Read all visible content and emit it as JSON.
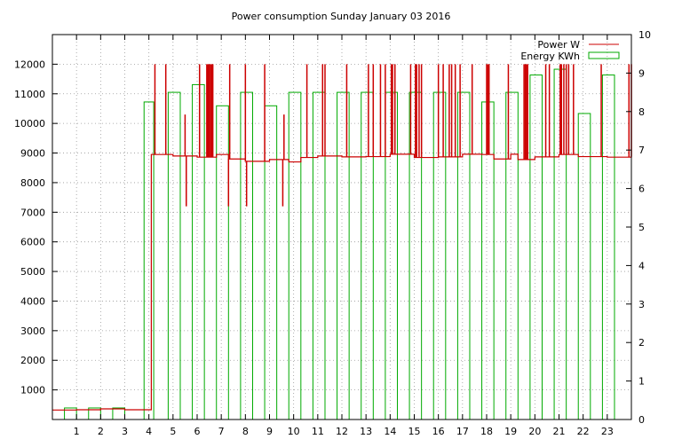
{
  "chart_data": {
    "type": "bar",
    "title": "Power consumption Sunday January 03 2016",
    "xlabel": "",
    "ylabel": "",
    "y2label": "",
    "xlim": [
      0,
      24
    ],
    "ylim": [
      0,
      13000
    ],
    "y2lim": [
      0,
      10
    ],
    "xticks": [
      1,
      2,
      3,
      4,
      5,
      6,
      7,
      8,
      9,
      10,
      11,
      12,
      13,
      14,
      15,
      16,
      17,
      18,
      19,
      20,
      21,
      22,
      23
    ],
    "yticks": [
      1000,
      2000,
      3000,
      4000,
      5000,
      6000,
      7000,
      8000,
      9000,
      10000,
      11000,
      12000
    ],
    "y2ticks": [
      0,
      1,
      2,
      3,
      4,
      5,
      6,
      7,
      8,
      9,
      10
    ],
    "grid": true,
    "legend_position": "top-right",
    "series": [
      {
        "name": "Power W",
        "axis": "y1",
        "style": "line",
        "color": "#cc0000",
        "baseline": [
          [
            0,
            320
          ],
          [
            1,
            330
          ],
          [
            2,
            360
          ],
          [
            3,
            330
          ],
          [
            3.9,
            330
          ],
          [
            4.1,
            8950
          ],
          [
            5,
            8900
          ],
          [
            6,
            8860
          ],
          [
            6.8,
            8950
          ],
          [
            7.3,
            8800
          ],
          [
            8,
            8720
          ],
          [
            9,
            8780
          ],
          [
            9.8,
            8700
          ],
          [
            10.3,
            8850
          ],
          [
            11,
            8900
          ],
          [
            12,
            8870
          ],
          [
            13,
            8880
          ],
          [
            14,
            8960
          ],
          [
            15,
            8850
          ],
          [
            16,
            8870
          ],
          [
            17,
            8960
          ],
          [
            17.8,
            8950
          ],
          [
            18.3,
            8800
          ],
          [
            19,
            8960
          ],
          [
            19.3,
            8780
          ],
          [
            20,
            8870
          ],
          [
            21,
            8950
          ],
          [
            21.8,
            8880
          ],
          [
            23,
            8860
          ],
          [
            24,
            8880
          ]
        ],
        "spikes": [
          [
            4.25,
            12000
          ],
          [
            4.7,
            12000
          ],
          [
            5.5,
            10300
          ],
          [
            5.55,
            7200
          ],
          [
            6.1,
            12000
          ],
          [
            6.4,
            12000
          ],
          [
            6.45,
            12000
          ],
          [
            6.5,
            12000
          ],
          [
            6.55,
            12000
          ],
          [
            6.6,
            12000
          ],
          [
            6.65,
            12000
          ],
          [
            7.3,
            7200
          ],
          [
            7.35,
            12000
          ],
          [
            8,
            12000
          ],
          [
            8.05,
            7200
          ],
          [
            8.8,
            12000
          ],
          [
            9.55,
            7200
          ],
          [
            9.6,
            10300
          ],
          [
            10.55,
            12000
          ],
          [
            11.2,
            12000
          ],
          [
            11.3,
            12000
          ],
          [
            12.2,
            12000
          ],
          [
            13.1,
            12000
          ],
          [
            13.3,
            12000
          ],
          [
            13.6,
            12000
          ],
          [
            13.8,
            12000
          ],
          [
            14.05,
            12000
          ],
          [
            14.1,
            12000
          ],
          [
            14.2,
            12000
          ],
          [
            14.85,
            12000
          ],
          [
            15.05,
            12000
          ],
          [
            15.1,
            12000
          ],
          [
            15.2,
            12000
          ],
          [
            15.3,
            12000
          ],
          [
            16,
            12000
          ],
          [
            16.2,
            12000
          ],
          [
            16.45,
            12000
          ],
          [
            16.55,
            12000
          ],
          [
            16.7,
            12000
          ],
          [
            16.9,
            12000
          ],
          [
            17.4,
            12000
          ],
          [
            18,
            12000
          ],
          [
            18.05,
            12000
          ],
          [
            18.1,
            12000
          ],
          [
            18.9,
            12000
          ],
          [
            19.55,
            12000
          ],
          [
            19.6,
            12000
          ],
          [
            19.65,
            12000
          ],
          [
            19.7,
            12000
          ],
          [
            20.45,
            12000
          ],
          [
            20.6,
            12000
          ],
          [
            21.05,
            12000
          ],
          [
            21.1,
            12000
          ],
          [
            21.2,
            12000
          ],
          [
            21.3,
            12000
          ],
          [
            21.4,
            12000
          ],
          [
            21.6,
            12000
          ],
          [
            22.75,
            12000
          ],
          [
            23.9,
            12000
          ],
          [
            24,
            12000
          ]
        ]
      },
      {
        "name": "Energy KWh",
        "axis": "y2",
        "style": "steps",
        "color": "#00aa00",
        "bars": [
          [
            0.5,
            1.0,
            0.3
          ],
          [
            1.5,
            2.0,
            0.3
          ],
          [
            2.5,
            3.0,
            0.3
          ],
          [
            3.8,
            4.2,
            8.25
          ],
          [
            4.8,
            5.3,
            8.5
          ],
          [
            5.8,
            6.3,
            8.7
          ],
          [
            6.8,
            7.3,
            8.15
          ],
          [
            7.8,
            8.3,
            8.5
          ],
          [
            8.8,
            9.3,
            8.15
          ],
          [
            9.8,
            10.3,
            8.5
          ],
          [
            10.8,
            11.3,
            8.5
          ],
          [
            11.8,
            12.3,
            8.5
          ],
          [
            12.8,
            13.3,
            8.5
          ],
          [
            13.8,
            14.3,
            8.5
          ],
          [
            14.8,
            15.3,
            8.5
          ],
          [
            15.8,
            16.3,
            8.5
          ],
          [
            16.8,
            17.3,
            8.5
          ],
          [
            17.8,
            18.3,
            8.25
          ],
          [
            18.8,
            19.3,
            8.5
          ],
          [
            19.8,
            20.3,
            8.95
          ],
          [
            20.8,
            21.3,
            9.1
          ],
          [
            21.8,
            22.3,
            7.95
          ],
          [
            22.8,
            23.3,
            8.95
          ]
        ]
      }
    ]
  }
}
